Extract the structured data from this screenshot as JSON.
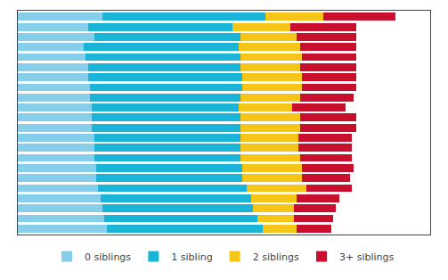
{
  "chart_data": {
    "type": "bar",
    "orientation": "horizontal",
    "stacked": true,
    "categories": [
      null,
      null,
      null,
      null,
      null,
      null,
      null,
      null,
      null,
      null,
      null,
      null,
      null,
      null,
      null,
      null,
      null,
      null,
      null,
      null,
      null,
      null
    ],
    "series": [
      {
        "name": "0 siblings",
        "color": "#87CEEB",
        "values": [
          20.5,
          17.0,
          18.5,
          16.0,
          16.5,
          17.0,
          17.0,
          17.5,
          17.5,
          18.0,
          18.0,
          18.0,
          18.5,
          18.5,
          18.5,
          19.0,
          19.0,
          19.5,
          20.0,
          20.5,
          21.0,
          21.5
        ]
      },
      {
        "name": "1 sibling",
        "color": "#1AB4D8",
        "values": [
          39.5,
          35.0,
          35.5,
          37.5,
          37.5,
          37.0,
          37.5,
          37.0,
          36.5,
          35.5,
          36.0,
          36.0,
          35.5,
          35.5,
          35.5,
          35.5,
          35.5,
          36.0,
          36.5,
          36.5,
          37.0,
          38.0
        ]
      },
      {
        "name": "2 siblings",
        "color": "#F5C518",
        "values": [
          14.0,
          14.0,
          13.5,
          15.0,
          15.0,
          14.5,
          14.5,
          14.5,
          14.5,
          13.0,
          14.5,
          14.5,
          14.0,
          14.0,
          14.5,
          14.5,
          14.5,
          14.5,
          11.0,
          10.0,
          9.0,
          8.0
        ]
      },
      {
        "name": "3+ siblings",
        "color": "#C8102E",
        "values": [
          17.5,
          16.0,
          14.5,
          13.5,
          13.0,
          13.5,
          13.0,
          13.0,
          13.0,
          13.0,
          13.5,
          13.5,
          13.0,
          13.0,
          12.5,
          12.5,
          11.5,
          11.0,
          10.5,
          10.0,
          9.5,
          8.5
        ]
      }
    ],
    "xlim": [
      0,
      100
    ],
    "tick_labels": false,
    "grid": false,
    "legend": "bottom"
  }
}
